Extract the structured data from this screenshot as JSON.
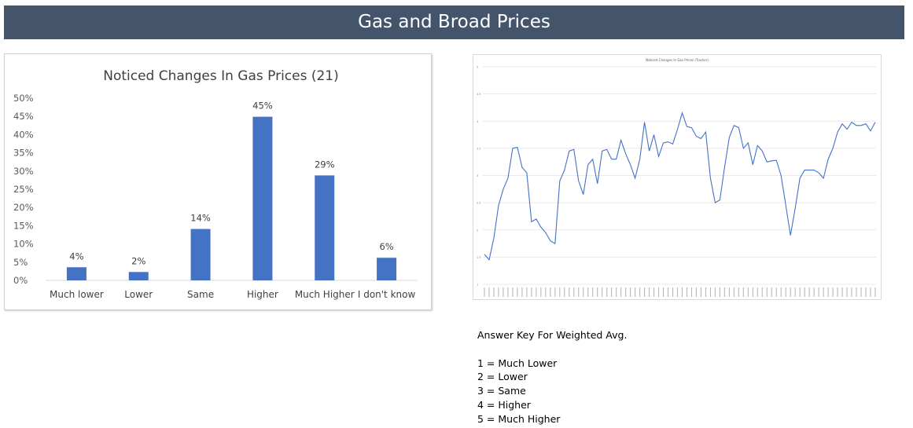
{
  "banner": {
    "title": "Gas and Broad Prices"
  },
  "chart_data": [
    {
      "type": "bar",
      "title": "Noticed Changes In Gas Prices (21)",
      "categories": [
        "Much lower",
        "Lower",
        "Same",
        "Higher",
        "Much Higher",
        "I don't know"
      ],
      "values": [
        4,
        2,
        14,
        45,
        29,
        6
      ],
      "data_labels": [
        "4%",
        "2%",
        "14%",
        "45%",
        "29%",
        "6%"
      ],
      "y_ticks": [
        "0%",
        "5%",
        "10%",
        "15%",
        "20%",
        "25%",
        "30%",
        "35%",
        "40%",
        "45%",
        "50%"
      ],
      "ylim": [
        0,
        50
      ],
      "bar_display_values": [
        3.6,
        2.3,
        14.1,
        44.9,
        28.8,
        6.2
      ],
      "bar_color": "#4472c4",
      "grid": false
    },
    {
      "type": "line",
      "title": "Noticed Changes In Gas Prices (Tracker)",
      "ylim": [
        1,
        5
      ],
      "y_ticks": [
        "1",
        "1.5",
        "2",
        "2.5",
        "3",
        "3.5",
        "4",
        "4.5",
        "5"
      ],
      "grid": true,
      "line_color": "#4472c4",
      "values": [
        1.55,
        1.45,
        1.85,
        2.45,
        2.75,
        2.95,
        3.5,
        3.52,
        3.15,
        3.05,
        2.15,
        2.2,
        2.05,
        1.95,
        1.8,
        1.75,
        2.9,
        3.1,
        3.45,
        3.48,
        2.9,
        2.65,
        3.2,
        3.3,
        2.85,
        3.45,
        3.48,
        3.3,
        3.3,
        3.65,
        3.4,
        3.2,
        2.95,
        3.3,
        3.98,
        3.45,
        3.75,
        3.35,
        3.6,
        3.62,
        3.58,
        3.85,
        4.15,
        3.9,
        3.88,
        3.72,
        3.68,
        3.8,
        2.95,
        2.5,
        2.55,
        3.15,
        3.7,
        3.92,
        3.88,
        3.5,
        3.6,
        3.2,
        3.55,
        3.45,
        3.25,
        3.27,
        3.28,
        3.0,
        2.45,
        1.9,
        2.4,
        2.95,
        3.1,
        3.1,
        3.1,
        3.05,
        2.95,
        3.3,
        3.5,
        3.8,
        3.95,
        3.85,
        3.98,
        3.92,
        3.92,
        3.95,
        3.82,
        3.98
      ]
    }
  ],
  "key": {
    "title": "Answer Key For Weighted Avg.",
    "items": [
      "1 = Much Lower",
      "2 = Lower",
      "3 = Same",
      "4 = Higher",
      "5 = Much Higher"
    ]
  }
}
